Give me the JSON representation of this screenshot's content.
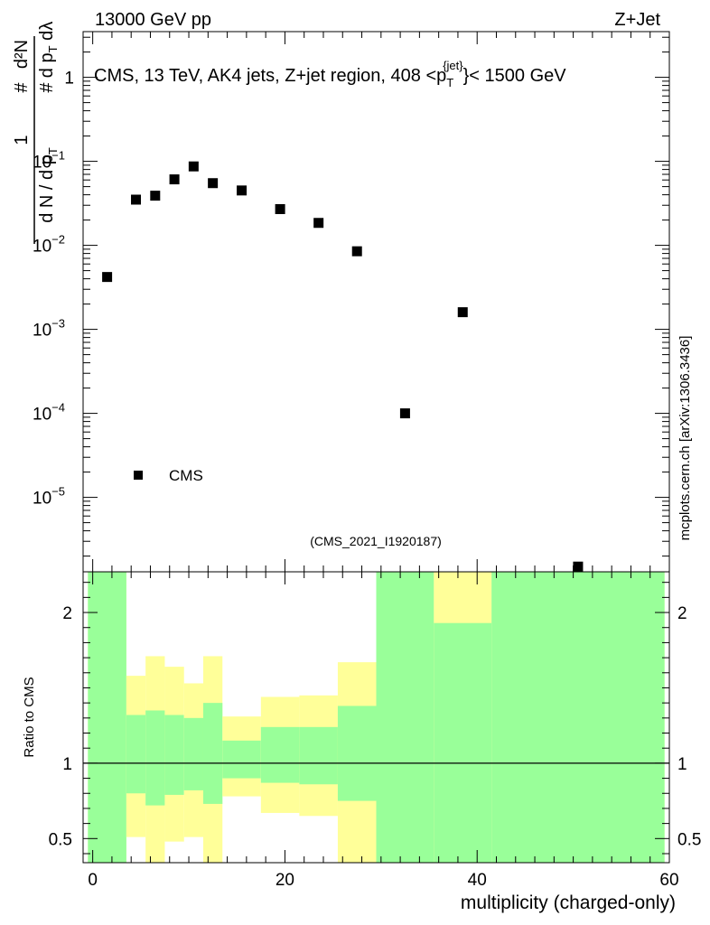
{
  "header": {
    "left": "13000 GeV pp",
    "right": "Z+Jet"
  },
  "watermark": "mcplots.cern.ch [arXiv:1306.3436]",
  "analysis_tag": "(CMS_2021_I1920187)",
  "y_axis_label": "1/(dN/dpT) · d²N/(dpT dλ)",
  "ratio_axis_label": "Ratio to CMS",
  "colors": {
    "marker": "#000000",
    "band_inner": "#99ff99",
    "band_outer": "#ffff99",
    "tag": "#999999"
  },
  "chart_data": [
    {
      "type": "scatter",
      "title": "CMS, 13 TeV, AK4 jets, Z+jet region, 408 < pT(jet) < 1500 GeV",
      "title_parts": {
        "before": "CMS, 13 TeV, AK4 jets, Z+jet region, 408 <p",
        "sub": "T",
        "sup": "{jet}",
        "after": "}< 1500 GeV"
      },
      "xlabel": "multiplicity (charged-only)",
      "ylabel": "1/(dN/dpT) d²N/(dpT dλ)",
      "yscale": "log",
      "xlim": [
        -1,
        60
      ],
      "ylim": [
        1.3e-06,
        3.5
      ],
      "legend": {
        "label": "CMS",
        "position": "bottom-left"
      },
      "y_ticks": [
        {
          "value": 1,
          "mantissa": "1",
          "exp": ""
        },
        {
          "value": 0.1,
          "mantissa": "10",
          "exp": "−1"
        },
        {
          "value": 0.01,
          "mantissa": "10",
          "exp": "−2"
        },
        {
          "value": 0.001,
          "mantissa": "10",
          "exp": "−3"
        },
        {
          "value": 0.0001,
          "mantissa": "10",
          "exp": "−4"
        },
        {
          "value": 1e-05,
          "mantissa": "10",
          "exp": "−5"
        }
      ],
      "series": [
        {
          "name": "CMS",
          "x": [
            1.5,
            4.5,
            6.5,
            8.5,
            10.5,
            12.5,
            15.5,
            19.5,
            23.5,
            27.5,
            32.5,
            38.5,
            50.5
          ],
          "y": [
            0.0042,
            0.035,
            0.039,
            0.061,
            0.087,
            0.055,
            0.045,
            0.027,
            0.0185,
            0.0085,
            0.0001,
            0.0016,
            1.5e-06
          ]
        }
      ]
    },
    {
      "type": "area",
      "title": "Ratio to CMS",
      "xlabel": "multiplicity (charged-only)",
      "ylabel": "Ratio to CMS",
      "xlim": [
        -1,
        60
      ],
      "ylim": [
        0.34,
        2.27
      ],
      "x_ticks": [
        0,
        20,
        40,
        60
      ],
      "y_ticks": [
        0.5,
        1,
        2
      ],
      "reference_line": 1,
      "bins": [
        {
          "x0": -0.5,
          "x1": 3.5,
          "inner": [
            0.34,
            2.27
          ],
          "outer": [
            0.34,
            2.27
          ]
        },
        {
          "x0": 3.5,
          "x1": 5.5,
          "inner": [
            0.8,
            1.32
          ],
          "outer": [
            0.51,
            1.58
          ]
        },
        {
          "x0": 5.5,
          "x1": 7.5,
          "inner": [
            0.72,
            1.35
          ],
          "outer": [
            0.34,
            1.71
          ]
        },
        {
          "x0": 7.5,
          "x1": 9.5,
          "inner": [
            0.79,
            1.32
          ],
          "outer": [
            0.48,
            1.64
          ]
        },
        {
          "x0": 9.5,
          "x1": 11.5,
          "inner": [
            0.82,
            1.3
          ],
          "outer": [
            0.51,
            1.53
          ]
        },
        {
          "x0": 11.5,
          "x1": 13.5,
          "inner": [
            0.73,
            1.4
          ],
          "outer": [
            0.34,
            1.71
          ]
        },
        {
          "x0": 13.5,
          "x1": 17.5,
          "inner": [
            0.9,
            1.15
          ],
          "outer": [
            0.78,
            1.31
          ]
        },
        {
          "x0": 17.5,
          "x1": 21.5,
          "inner": [
            0.87,
            1.24
          ],
          "outer": [
            0.67,
            1.44
          ]
        },
        {
          "x0": 21.5,
          "x1": 25.5,
          "inner": [
            0.86,
            1.24
          ],
          "outer": [
            0.65,
            1.45
          ]
        },
        {
          "x0": 25.5,
          "x1": 29.5,
          "inner": [
            0.75,
            1.38
          ],
          "outer": [
            0.34,
            1.67
          ]
        },
        {
          "x0": 29.5,
          "x1": 35.5,
          "inner": [
            0.34,
            2.27
          ],
          "outer": [
            0.34,
            2.27
          ]
        },
        {
          "x0": 35.5,
          "x1": 41.5,
          "inner": [
            0.34,
            1.93
          ],
          "outer": [
            0.34,
            2.27
          ]
        },
        {
          "x0": 41.5,
          "x1": 59.5,
          "inner": [
            0.34,
            2.27
          ],
          "outer": [
            0.34,
            2.27
          ]
        }
      ]
    }
  ]
}
